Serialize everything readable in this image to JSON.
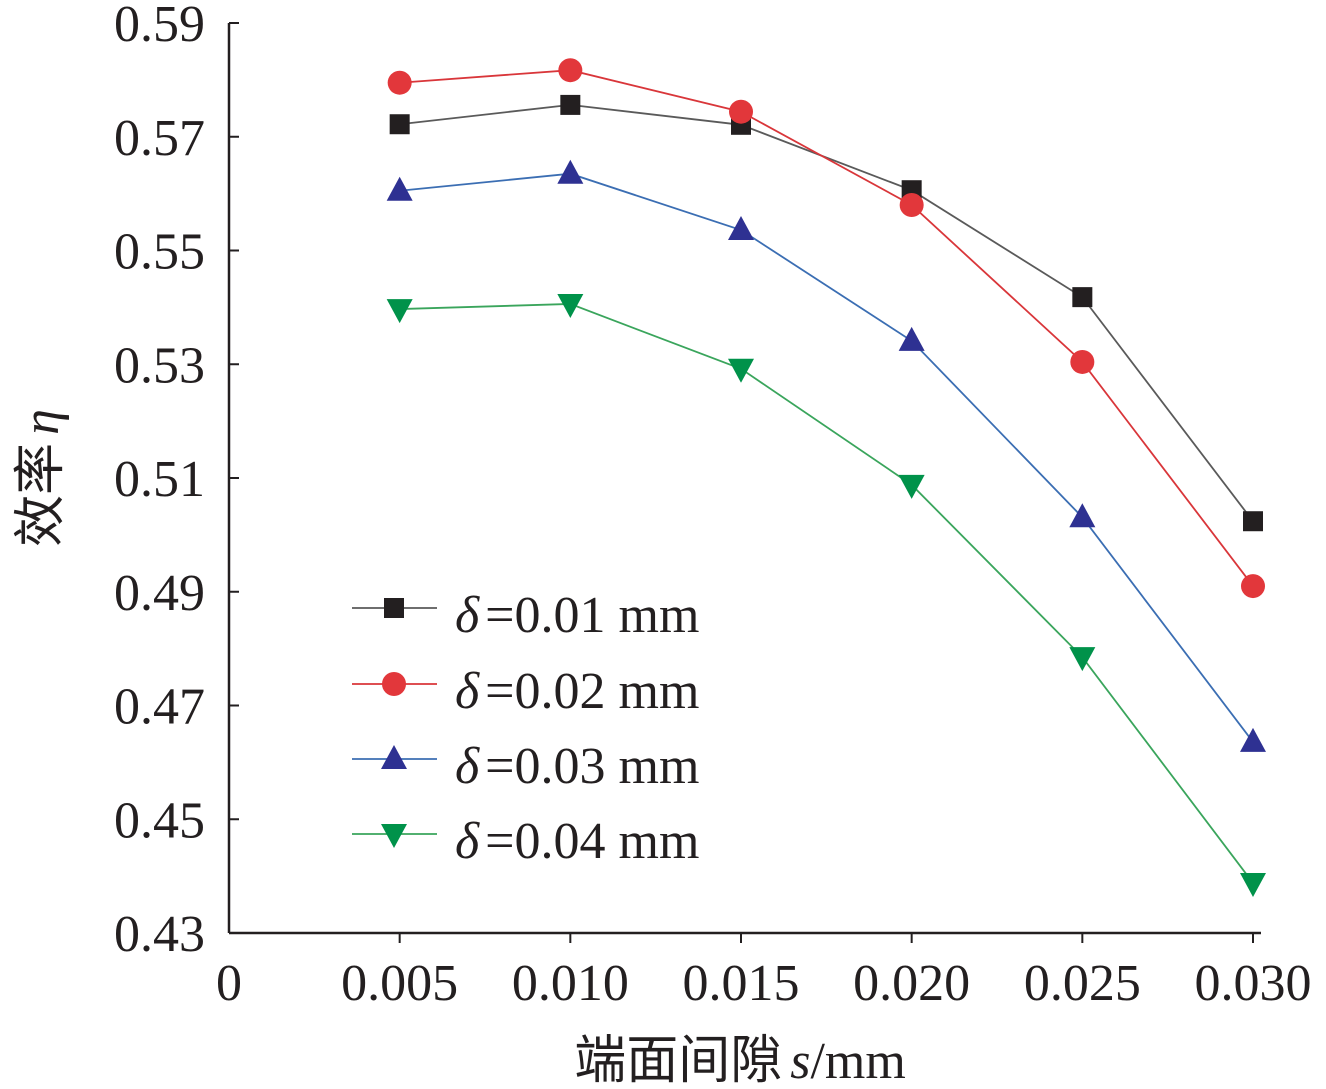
{
  "chart_data": {
    "type": "line",
    "title": "",
    "xlabel": "端面间隙 s/mm",
    "xlabel_parts": {
      "prefix": "端面间隙",
      "var": "s",
      "unit": "/mm"
    },
    "ylabel": "效率 η",
    "ylabel_parts": {
      "prefix": "效率",
      "var": "η"
    },
    "x": [
      0.005,
      0.01,
      0.015,
      0.02,
      0.025,
      0.03
    ],
    "xlim": [
      0,
      0.03
    ],
    "ylim": [
      0.43,
      0.59
    ],
    "x_tick_labels": [
      "0",
      "0.005",
      "0.010",
      "0.015",
      "0.020",
      "0.025",
      "0.030"
    ],
    "x_tick_values": [
      0,
      0.005,
      0.01,
      0.015,
      0.02,
      0.025,
      0.03
    ],
    "y_tick_labels": [
      "0.43",
      "0.45",
      "0.47",
      "0.49",
      "0.51",
      "0.53",
      "0.55",
      "0.57",
      "0.59"
    ],
    "y_tick_values": [
      0.43,
      0.45,
      0.47,
      0.49,
      0.51,
      0.53,
      0.55,
      0.57,
      0.59
    ],
    "grid": false,
    "legend_position": "bottom-left",
    "series": [
      {
        "name": "δ=0.01 mm",
        "var": "δ",
        "label": "=0.01 mm",
        "marker": "square",
        "marker_color": "#231f20",
        "line_color": "#5a5a5a",
        "values": [
          0.5722,
          0.5756,
          0.5721,
          0.5606,
          0.5418,
          0.5024
        ]
      },
      {
        "name": "δ=0.02 mm",
        "var": "δ",
        "label": "=0.02 mm",
        "marker": "circle",
        "marker_color": "#e2373b",
        "line_color": "#d9363a",
        "values": [
          0.5795,
          0.5817,
          0.5744,
          0.558,
          0.5304,
          0.491
        ]
      },
      {
        "name": "δ=0.03 mm",
        "var": "δ",
        "label": "=0.03 mm",
        "marker": "triangle-up",
        "marker_color": "#2e3192",
        "line_color": "#3b6eb3",
        "values": [
          0.5605,
          0.5635,
          0.5536,
          0.5341,
          0.5031,
          0.4636
        ]
      },
      {
        "name": "δ=0.04 mm",
        "var": "δ",
        "label": "=0.04 mm",
        "marker": "triangle-down",
        "marker_color": "#00924a",
        "line_color": "#3aa55c",
        "values": [
          0.5397,
          0.5406,
          0.5292,
          0.5088,
          0.4785,
          0.4388
        ]
      }
    ]
  }
}
